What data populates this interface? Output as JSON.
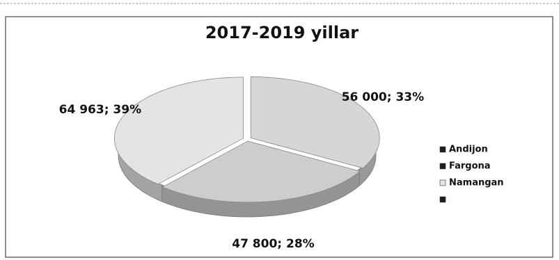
{
  "chart_data": {
    "type": "pie3d",
    "title": "2017-2019 yillar",
    "categories": [
      "Andijon",
      "Fargona",
      "Namangan",
      null
    ],
    "values": [
      56000,
      47800,
      64963,
      null
    ],
    "value_labels": [
      "56 000; 33%",
      "47 800; 28%",
      "64 963; 39%",
      null
    ],
    "colors": [
      "#d6d6d6",
      "#cdcdcd",
      "#e4e4e4",
      "#1e1e1e"
    ],
    "legend": "right"
  }
}
